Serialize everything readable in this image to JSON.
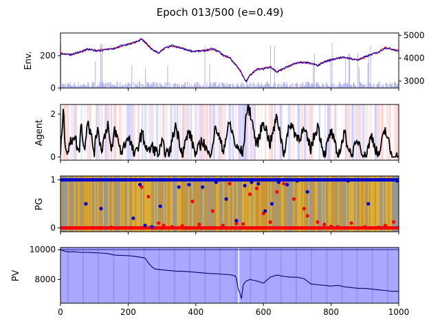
{
  "figure": {
    "title": "Epoch 013/500 (e=0.49)"
  },
  "chart_data": [
    {
      "type": "line",
      "panel": "env",
      "ylabel": "Env.",
      "xlim": [
        0,
        1000
      ],
      "ylim": [
        0,
        340
      ],
      "yticks": [
        0,
        200
      ],
      "secondary_y": {
        "ylim": [
          2700,
          5100
        ],
        "yticks": [
          3000,
          4000,
          5000
        ]
      },
      "series": [
        {
          "color": "#ff0000",
          "x": [
            0,
            30,
            60,
            80,
            100,
            120,
            140,
            160,
            180,
            200,
            220,
            240,
            255,
            270,
            290,
            310,
            330,
            360,
            390,
            420,
            450,
            470,
            480,
            500,
            510,
            520,
            530,
            540,
            545,
            550,
            560,
            580,
            600,
            620,
            640,
            660,
            680,
            700,
            720,
            740,
            760,
            780,
            800,
            820,
            840,
            860,
            880,
            900,
            920,
            940,
            960,
            980,
            1000
          ],
          "values": [
            215,
            205,
            225,
            240,
            230,
            235,
            238,
            245,
            260,
            270,
            280,
            305,
            270,
            240,
            215,
            250,
            260,
            245,
            225,
            230,
            240,
            225,
            200,
            190,
            160,
            140,
            110,
            70,
            50,
            40,
            80,
            115,
            120,
            130,
            100,
            120,
            140,
            155,
            160,
            150,
            140,
            160,
            175,
            185,
            190,
            180,
            175,
            190,
            210,
            220,
            250,
            240,
            230
          ]
        },
        {
          "color": "#0000cc",
          "x": [
            0,
            30,
            60,
            80,
            100,
            120,
            140,
            160,
            180,
            200,
            220,
            240,
            255,
            270,
            290,
            310,
            330,
            360,
            390,
            420,
            450,
            470,
            480,
            500,
            510,
            520,
            530,
            540,
            545,
            550,
            560,
            580,
            600,
            620,
            640,
            660,
            680,
            700,
            720,
            740,
            760,
            780,
            800,
            820,
            840,
            860,
            880,
            900,
            920,
            940,
            960,
            980,
            1000
          ],
          "values": [
            212,
            208,
            222,
            238,
            233,
            232,
            240,
            243,
            262,
            268,
            283,
            300,
            273,
            238,
            218,
            247,
            262,
            243,
            228,
            228,
            243,
            222,
            203,
            188,
            162,
            138,
            113,
            72,
            48,
            42,
            78,
            117,
            118,
            132,
            98,
            122,
            138,
            157,
            158,
            152,
            138,
            162,
            173,
            187,
            188,
            182,
            173,
            192,
            208,
            222,
            248,
            242,
            228
          ]
        }
      ],
      "volume_bars": {
        "color": "#8888ee",
        "note_max_height_secondary": 3200
      }
    },
    {
      "type": "line",
      "panel": "agent",
      "ylabel": "Agent",
      "xlim": [
        0,
        1000
      ],
      "ylim": [
        -0.15,
        2.45
      ],
      "yticks": [
        0,
        2
      ],
      "series": [
        {
          "color": "#000000",
          "x": [
            0,
            8,
            12,
            20,
            40,
            55,
            60,
            70,
            80,
            100,
            110,
            120,
            140,
            150,
            160,
            180,
            200,
            220,
            240,
            260,
            270,
            290,
            300,
            320,
            340,
            360,
            380,
            400,
            420,
            440,
            460,
            480,
            500,
            520,
            540,
            550,
            560,
            580,
            600,
            620,
            640,
            660,
            680,
            700,
            720,
            740,
            760,
            780,
            800,
            820,
            840,
            860,
            880,
            900,
            920,
            940,
            960,
            980,
            1000
          ],
          "values": [
            0,
            2.3,
            1.0,
            0.2,
            1.1,
            0.1,
            1.7,
            0.3,
            1.8,
            0.2,
            1.5,
            0.3,
            1.6,
            0.1,
            1.3,
            0.2,
            1.0,
            0.0,
            1.1,
            0.2,
            0.5,
            0.1,
            0.6,
            0.0,
            1.5,
            0.2,
            1.2,
            0.1,
            0.8,
            0.0,
            1.4,
            0.3,
            1.6,
            0.4,
            0.2,
            2.2,
            2.2,
            0.5,
            1.7,
            0.6,
            1.9,
            0.2,
            1.6,
            0.9,
            1.2,
            0.4,
            1.5,
            0.1,
            1.2,
            0.0,
            1.1,
            0.0,
            0.8,
            0.0,
            1.0,
            0.0,
            1.3,
            0.0,
            0.0
          ]
        }
      ],
      "background_bands": [
        "#b8b8ff",
        "#ffc0c0",
        "#ffffff"
      ]
    },
    {
      "type": "scatter",
      "panel": "pg",
      "ylabel": "PG",
      "xlim": [
        0,
        1000
      ],
      "ylim": [
        -0.08,
        1.08
      ],
      "yticks": [
        0,
        1
      ],
      "series": [
        {
          "color": "#ff0000",
          "x": [
            5,
            25,
            55,
            75,
            95,
            120,
            150,
            180,
            215,
            240,
            260,
            290,
            305,
            330,
            360,
            390,
            410,
            450,
            480,
            500,
            520,
            540,
            560,
            580,
            600,
            620,
            640,
            660,
            690,
            720,
            730,
            760,
            780,
            800,
            820,
            860,
            900,
            940,
            960,
            985
          ],
          "values": [
            0,
            0,
            0,
            0,
            0,
            0,
            0.01,
            0,
            0,
            0.85,
            0.65,
            0.1,
            0.05,
            0.02,
            0.04,
            0.55,
            0.07,
            0.35,
            0.05,
            0.92,
            0.09,
            0.08,
            0.7,
            0.82,
            0.3,
            0.12,
            0.75,
            0.92,
            0.6,
            0.4,
            0.25,
            0.12,
            0.07,
            0.03,
            0.02,
            0.1,
            0.02,
            0.01,
            0.05,
            0.12
          ]
        },
        {
          "color": "#0000cc",
          "x": [
            5,
            25,
            55,
            75,
            95,
            120,
            150,
            180,
            215,
            235,
            250,
            270,
            295,
            310,
            350,
            380,
            420,
            460,
            490,
            520,
            545,
            565,
            585,
            605,
            625,
            645,
            670,
            700,
            730,
            760,
            790,
            820,
            850,
            880,
            910,
            940,
            970,
            995
          ],
          "values": [
            1,
            1,
            1,
            0.5,
            1,
            0.4,
            1,
            1,
            0.2,
            0.9,
            0.05,
            0.02,
            0.45,
            1,
            0.85,
            0.9,
            0.85,
            0.95,
            0.6,
            0.15,
            0.88,
            0.95,
            0.92,
            0.35,
            0.5,
            0.95,
            0.9,
            0.98,
            0.75,
            1,
            1,
            1,
            0.98,
            1,
            0.5,
            1,
            1,
            0.98
          ]
        }
      ],
      "background_bands": [
        "#d7a51b",
        "#c4871c",
        "#8a8a88"
      ]
    },
    {
      "type": "line",
      "panel": "pv",
      "ylabel": "PV",
      "xlim": [
        0,
        1000
      ],
      "ylim": [
        6400,
        10150
      ],
      "yticks": [
        8000,
        10000
      ],
      "xticks": [
        0,
        200,
        400,
        600,
        800,
        1000
      ],
      "series": [
        {
          "color": "#00006e",
          "x": [
            0,
            20,
            40,
            60,
            80,
            100,
            120,
            140,
            160,
            180,
            200,
            220,
            240,
            250,
            260,
            270,
            280,
            300,
            320,
            340,
            360,
            380,
            400,
            420,
            440,
            460,
            480,
            500,
            515,
            520,
            525,
            530,
            535,
            540,
            545,
            550,
            560,
            580,
            600,
            620,
            640,
            660,
            680,
            700,
            720,
            740,
            760,
            780,
            800,
            820,
            840,
            860,
            880,
            900,
            920,
            940,
            960,
            980,
            1000
          ],
          "values": [
            10000,
            9850,
            9870,
            9820,
            9820,
            9800,
            9780,
            9740,
            9640,
            9620,
            9600,
            9550,
            9480,
            9440,
            9100,
            8850,
            8700,
            8650,
            8600,
            8560,
            8550,
            8520,
            8480,
            8440,
            8400,
            8380,
            8350,
            8320,
            8250,
            8100,
            7400,
            7100,
            6700,
            7600,
            7800,
            7900,
            8000,
            7900,
            7750,
            8150,
            8300,
            8200,
            8150,
            8150,
            8050,
            7700,
            7650,
            7600,
            7550,
            7600,
            7500,
            7450,
            7400,
            7400,
            7350,
            7300,
            7250,
            7200,
            7200
          ]
        }
      ],
      "reference_line": {
        "y": 10000,
        "color": "#4b4bb4"
      },
      "fill_color": "#a8a8ff"
    }
  ]
}
